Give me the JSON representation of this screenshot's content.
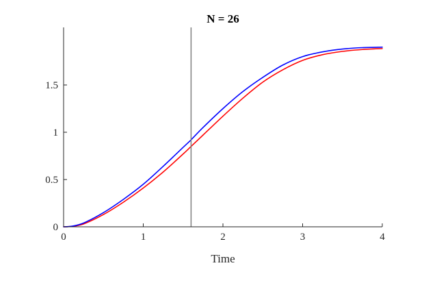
{
  "chart_data": {
    "type": "line",
    "title": "N = 26",
    "xlabel": "Time",
    "ylabel": "",
    "xlim": [
      0,
      4
    ],
    "ylim": [
      0,
      2
    ],
    "xticks": [
      0,
      1,
      2,
      3,
      4
    ],
    "xtick_labels": [
      "0",
      "1",
      "2",
      "3",
      "4"
    ],
    "yticks": [
      0,
      0.5,
      1,
      1.5
    ],
    "ytick_labels": [
      "0",
      "0.5",
      "1",
      "1.5"
    ],
    "grid": false,
    "box": false,
    "vertical_marker": {
      "x": 1.6,
      "color": "#808080"
    },
    "series": [
      {
        "color": "#0000ff",
        "x": [
          0,
          0.1,
          0.25,
          0.5,
          0.75,
          1.0,
          1.25,
          1.5,
          1.6,
          1.75,
          2.0,
          2.25,
          2.5,
          2.75,
          3.0,
          3.25,
          3.5,
          3.75,
          4.0
        ],
        "y": [
          0,
          0.006,
          0.04,
          0.15,
          0.29,
          0.45,
          0.64,
          0.84,
          0.92,
          1.05,
          1.25,
          1.43,
          1.58,
          1.71,
          1.8,
          1.85,
          1.88,
          1.895,
          1.9
        ]
      },
      {
        "color": "#ff0000",
        "x": [
          0,
          0.1,
          0.25,
          0.5,
          0.75,
          1.0,
          1.25,
          1.5,
          1.6,
          1.75,
          2.0,
          2.25,
          2.5,
          2.75,
          3.0,
          3.25,
          3.5,
          3.75,
          4.0
        ],
        "y": [
          0,
          0.005,
          0.03,
          0.13,
          0.26,
          0.41,
          0.58,
          0.77,
          0.85,
          0.97,
          1.17,
          1.36,
          1.53,
          1.66,
          1.76,
          1.82,
          1.855,
          1.875,
          1.885
        ]
      }
    ]
  }
}
